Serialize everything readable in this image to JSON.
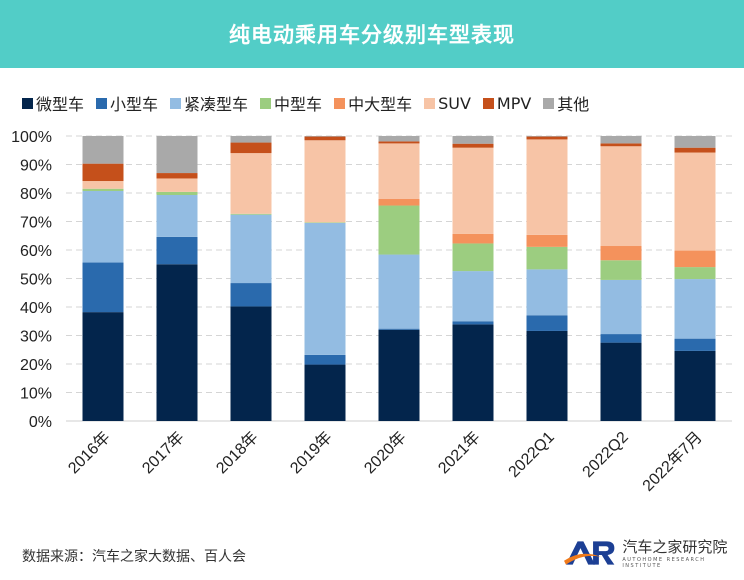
{
  "title": "纯电动乘用车分级别车型表现",
  "source": "数据来源：汽车之家大数据、百人会",
  "logo": {
    "mark": "AR",
    "name_cn": "汽车之家研究院",
    "name_en": "AUTOHOME RESEARCH INSTITUTE"
  },
  "chart_data": {
    "type": "bar",
    "stacked": true,
    "percent": true,
    "title": "纯电动乘用车分级别车型表现",
    "categories": [
      "2016年",
      "2017年",
      "2018年",
      "2019年",
      "2020年",
      "2021年",
      "2022Q1",
      "2022Q2",
      "2022年7月"
    ],
    "ylim": [
      0,
      100
    ],
    "yticks": [
      "0%",
      "10%",
      "20%",
      "30%",
      "40%",
      "50%",
      "60%",
      "70%",
      "80%",
      "90%",
      "100%"
    ],
    "grid": true,
    "legend": "top",
    "series": [
      {
        "name": "微型车",
        "color": "#03254c",
        "values": [
          38.2,
          55.0,
          40.2,
          19.8,
          32.0,
          33.9,
          31.6,
          27.5,
          24.6
        ]
      },
      {
        "name": "小型车",
        "color": "#2a6aad",
        "values": [
          17.4,
          9.6,
          8.2,
          3.4,
          0.4,
          1.1,
          5.5,
          3.0,
          4.3
        ]
      },
      {
        "name": "紧凑型车",
        "color": "#93bce2",
        "values": [
          25.1,
          14.7,
          24.0,
          46.3,
          26.0,
          17.6,
          16.1,
          19.0,
          20.9
        ]
      },
      {
        "name": "中型车",
        "color": "#9ccd80",
        "values": [
          0.8,
          1.1,
          0.3,
          0.2,
          17.2,
          9.7,
          7.9,
          6.9,
          4.2
        ]
      },
      {
        "name": "中大型车",
        "color": "#f4925c",
        "values": [
          0,
          0,
          0,
          0,
          2.3,
          3.4,
          4.2,
          5.0,
          5.8
        ]
      },
      {
        "name": "SUV",
        "color": "#f7c4a6",
        "values": [
          2.7,
          4.7,
          21.3,
          28.8,
          19.5,
          30.2,
          33.5,
          35.0,
          34.4
        ]
      },
      {
        "name": "MPV",
        "color": "#c5501b",
        "values": [
          6.1,
          1.9,
          3.7,
          1.3,
          0.7,
          1.4,
          1.0,
          1.0,
          1.7
        ]
      },
      {
        "name": "其他",
        "color": "#a9a9a9",
        "values": [
          9.7,
          13.0,
          2.3,
          0.2,
          1.9,
          2.7,
          0.2,
          2.6,
          4.1
        ]
      }
    ]
  }
}
